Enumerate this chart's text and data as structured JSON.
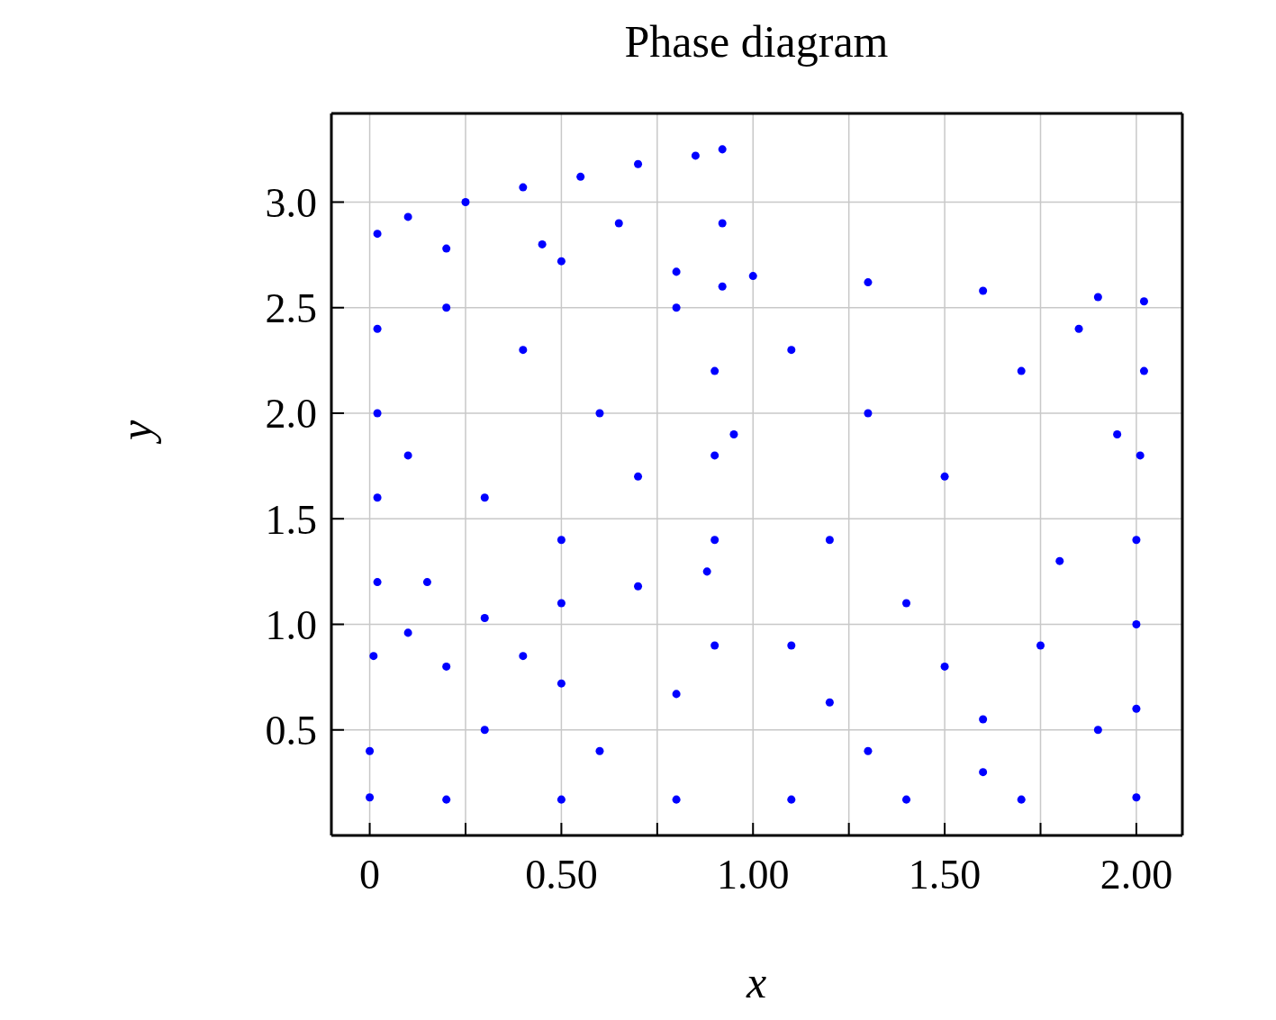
{
  "chart_data": {
    "type": "scatter",
    "title": "Phase diagram",
    "xlabel": "x",
    "ylabel": "y",
    "xlim": [
      -0.1,
      2.12
    ],
    "ylim": [
      0,
      3.42
    ],
    "xticks": [
      {
        "value": 0,
        "label": "0"
      },
      {
        "value": 0.25,
        "label": null
      },
      {
        "value": 0.5,
        "label": "0.50"
      },
      {
        "value": 0.75,
        "label": null
      },
      {
        "value": 1,
        "label": "1.00"
      },
      {
        "value": 1.25,
        "label": null
      },
      {
        "value": 1.5,
        "label": "1.50"
      },
      {
        "value": 1.75,
        "label": null
      },
      {
        "value": 2,
        "label": "2.00"
      }
    ],
    "yticks": [
      {
        "value": 0.5,
        "label": "0.5"
      },
      {
        "value": 1,
        "label": "1.0"
      },
      {
        "value": 1.5,
        "label": "1.5"
      },
      {
        "value": 2,
        "label": "2.0"
      },
      {
        "value": 2.5,
        "label": "2.5"
      },
      {
        "value": 3,
        "label": "3.0"
      }
    ],
    "grid": true,
    "marker": "circle",
    "series": [
      {
        "color": "#0000ff",
        "x": [
          0.0,
          0.0,
          0.01,
          0.02,
          0.02,
          0.02,
          0.02,
          0.02,
          0.1,
          0.25,
          0.4,
          0.55,
          0.7,
          0.85,
          0.92,
          0.92,
          0.92,
          0.9,
          0.9,
          0.9,
          0.88,
          0.7,
          0.5,
          0.3,
          0.1,
          0.2,
          0.5,
          0.8,
          1.0,
          1.3,
          1.6,
          1.9,
          2.02,
          2.02,
          2.01,
          2.0,
          2.0,
          2.0,
          2.0,
          0.2,
          0.5,
          0.8,
          1.1,
          1.4,
          1.7,
          0.2,
          0.5,
          0.8,
          1.2,
          1.6,
          1.9,
          1.1,
          1.3,
          1.5,
          1.7,
          1.2,
          1.4,
          1.8,
          1.1,
          1.5,
          1.75,
          1.3,
          1.6,
          0.95,
          1.95,
          1.85,
          0.6,
          0.3,
          0.9,
          0.4,
          0.2,
          0.4,
          0.6,
          0.3,
          0.5,
          0.7,
          0.8,
          0.15,
          0.45,
          0.65,
          0.1
        ],
        "values": [
          0.18,
          0.4,
          0.85,
          1.2,
          1.6,
          2.0,
          2.4,
          2.85,
          2.93,
          3.0,
          3.07,
          3.12,
          3.18,
          3.22,
          3.25,
          2.9,
          2.6,
          2.2,
          1.8,
          1.4,
          1.25,
          1.18,
          1.1,
          1.03,
          0.96,
          2.78,
          2.72,
          2.67,
          2.65,
          2.62,
          2.58,
          2.55,
          2.53,
          2.2,
          1.8,
          1.4,
          1.0,
          0.6,
          0.18,
          0.17,
          0.17,
          0.17,
          0.17,
          0.17,
          0.17,
          0.8,
          0.72,
          0.67,
          0.63,
          0.55,
          0.5,
          2.3,
          2.0,
          1.7,
          2.2,
          1.4,
          1.1,
          1.3,
          0.9,
          0.8,
          0.9,
          0.4,
          0.3,
          1.9,
          1.9,
          2.4,
          0.4,
          0.5,
          0.9,
          0.85,
          2.5,
          2.3,
          2.0,
          1.6,
          1.4,
          1.7,
          2.5,
          1.2,
          2.8,
          2.9,
          1.8
        ]
      }
    ]
  }
}
